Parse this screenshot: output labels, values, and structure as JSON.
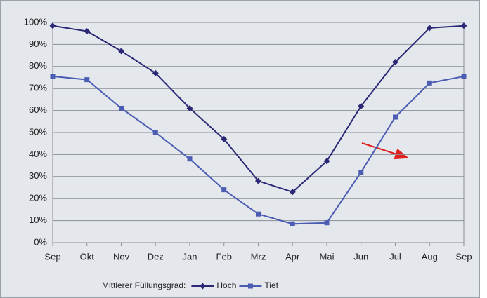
{
  "chart_data": {
    "type": "line",
    "categories": [
      "Sep",
      "Okt",
      "Nov",
      "Dez",
      "Jan",
      "Feb",
      "Mrz",
      "Apr",
      "Mai",
      "Jun",
      "Jul",
      "Aug",
      "Sep"
    ],
    "series": [
      {
        "name": "Hoch",
        "color": "#2b2875",
        "marker": "diamond",
        "values": [
          98.5,
          96,
          87,
          77,
          61,
          47,
          28,
          23,
          37,
          62,
          82,
          97.5,
          98.5
        ]
      },
      {
        "name": "Tief",
        "color": "#4b5cb3",
        "marker": "square",
        "values": [
          75.5,
          74,
          61,
          50,
          38,
          24,
          13,
          8.5,
          9,
          32,
          57,
          72.5,
          75.5
        ]
      }
    ],
    "ylim": [
      0,
      100
    ],
    "yticks": [
      {
        "value": 0,
        "label": "0%"
      },
      {
        "value": 10,
        "label": "10%"
      },
      {
        "value": 20,
        "label": "20%"
      },
      {
        "value": 30,
        "label": "30%"
      },
      {
        "value": 40,
        "label": "40%"
      },
      {
        "value": 50,
        "label": "50%"
      },
      {
        "value": 60,
        "label": "60%"
      },
      {
        "value": 70,
        "label": "70%"
      },
      {
        "value": 80,
        "label": "80%"
      },
      {
        "value": 90,
        "label": "90%"
      },
      {
        "value": 100,
        "label": "100%"
      }
    ],
    "grid": true,
    "legend_title": "Mittlerer Füllungsgrad:",
    "legend_position": "bottom"
  }
}
